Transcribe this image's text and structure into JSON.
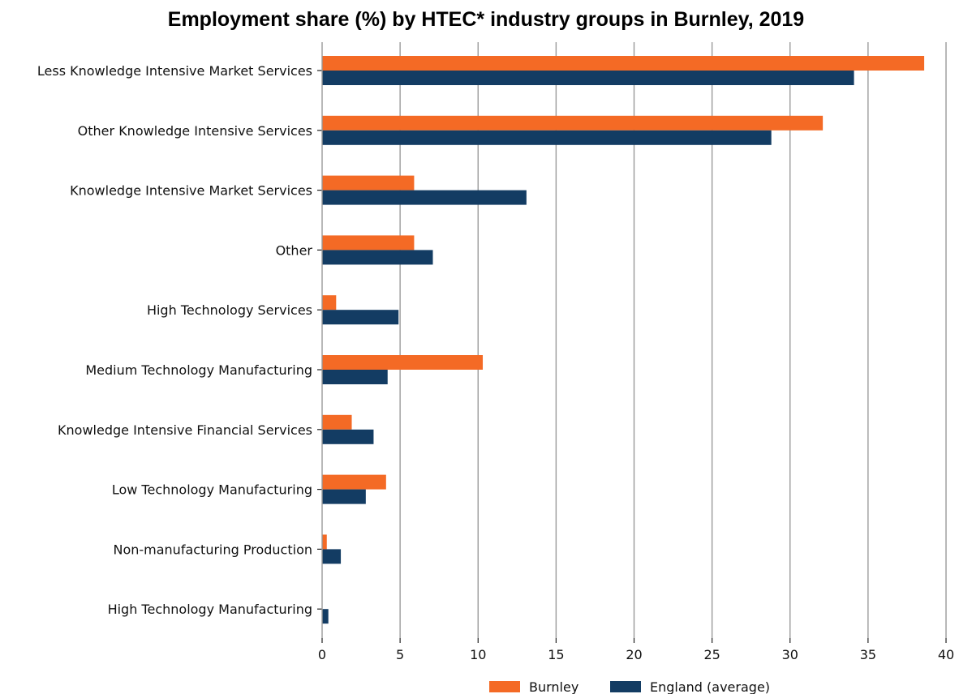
{
  "chart_data": {
    "type": "bar",
    "orientation": "horizontal",
    "title": "Employment share (%) by HTEC* industry groups in Burnley, 2019",
    "xlabel": "",
    "ylabel": "",
    "xlim": [
      0,
      40
    ],
    "xticks": [
      0,
      5,
      10,
      15,
      20,
      25,
      30,
      35,
      40
    ],
    "grid": "vertical",
    "legend_position": "bottom-center",
    "categories": [
      "Less Knowledge Intensive Market Services",
      "Other Knowledge Intensive Services",
      "Knowledge Intensive Market Services",
      "Other",
      "High Technology Services",
      "Medium Technology Manufacturing",
      "Knowledge Intensive Financial Services",
      "Low Technology Manufacturing",
      "Non-manufacturing Production",
      "High Technology Manufacturing"
    ],
    "series": [
      {
        "name": "Burnley",
        "color": "#f46a25",
        "values": [
          38.6,
          32.1,
          5.9,
          5.9,
          0.9,
          10.3,
          1.9,
          4.1,
          0.3,
          0.0
        ]
      },
      {
        "name": "England (average)",
        "color": "#133c63",
        "values": [
          34.1,
          28.8,
          13.1,
          7.1,
          4.9,
          4.2,
          3.3,
          2.8,
          1.2,
          0.4
        ]
      }
    ]
  }
}
